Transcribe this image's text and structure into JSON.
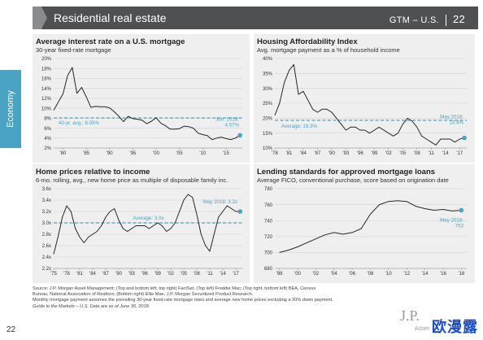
{
  "header": {
    "title": "Residential real estate",
    "region": "GTM – U.S.",
    "page": "22"
  },
  "side_tab": {
    "label": "Economy"
  },
  "panels": [
    {
      "title": "Average interest rate on a U.S. mortgage",
      "subtitle": "30-year fixed-rate mortgage"
    },
    {
      "title": "Housing Affordability Index",
      "subtitle": "Avg. mortgage payment as a % of household income"
    },
    {
      "title": "Home prices relative to income",
      "subtitle": "6-mo. rolling, avg., new home price as multiple of disposable family inc."
    },
    {
      "title": "Lending standards for approved mortgage loans",
      "subtitle": "Average FICO, conventional purchase, score based on origination date"
    }
  ],
  "colors": {
    "header_bg": "#4f5052",
    "accent": "#4aa3c2",
    "line": "#262626",
    "avg_line": "#4aa3c2",
    "panel_bg": "#efefef"
  },
  "chart_data": [
    {
      "type": "line",
      "title": "Average interest rate on a U.S. mortgage",
      "subtitle": "30-year fixed-rate mortgage",
      "x": [
        1978,
        1980,
        1981,
        1982,
        1983,
        1984,
        1985,
        1986,
        1987,
        1988,
        1989,
        1990,
        1991,
        1992,
        1993,
        1994,
        1995,
        1996,
        1997,
        1998,
        1999,
        2000,
        2001,
        2002,
        2003,
        2004,
        2005,
        2006,
        2007,
        2008,
        2009,
        2010,
        2011,
        2012,
        2013,
        2014,
        2015,
        2016,
        2017,
        2018
      ],
      "values": [
        9.6,
        12.9,
        16.6,
        18.2,
        13.0,
        14.2,
        12.3,
        10.2,
        10.4,
        10.3,
        10.3,
        10.1,
        9.3,
        8.4,
        7.3,
        8.4,
        7.9,
        7.8,
        7.6,
        6.9,
        7.4,
        8.1,
        7.0,
        6.5,
        5.8,
        5.8,
        5.9,
        6.4,
        6.3,
        6.0,
        5.0,
        4.7,
        4.5,
        3.7,
        4.0,
        4.2,
        3.9,
        3.7,
        4.0,
        4.57
      ],
      "xticks": [
        "'80",
        "'85",
        "'90",
        "'95",
        "'00",
        "'05",
        "'10",
        "'15"
      ],
      "xlim": [
        1978,
        2018.5
      ],
      "ylim": [
        2,
        20
      ],
      "yticks": [
        "2%",
        "4%",
        "6%",
        "8%",
        "10%",
        "12%",
        "14%",
        "16%",
        "18%",
        "20%"
      ],
      "average": {
        "value": 8.05,
        "label": "40-yr. avg.: 8.05%"
      },
      "latest": {
        "value": 4.57,
        "label_lines": [
          "Jun. 2018:",
          "4.57%"
        ]
      }
    },
    {
      "type": "line",
      "title": "Housing Affordability Index",
      "subtitle": "Avg. mortgage payment as a % of household income",
      "x": [
        1978,
        1979,
        1980,
        1981,
        1982,
        1983,
        1984,
        1985,
        1986,
        1987,
        1988,
        1989,
        1990,
        1991,
        1992,
        1993,
        1994,
        1995,
        1996,
        1997,
        1998,
        1999,
        2000,
        2001,
        2002,
        2003,
        2004,
        2005,
        2006,
        2007,
        2008,
        2009,
        2010,
        2011,
        2012,
        2013,
        2014,
        2015,
        2016,
        2017,
        2018
      ],
      "values": [
        21,
        25,
        32,
        36,
        38,
        28,
        29,
        26,
        23,
        22,
        23,
        23,
        22,
        20,
        18,
        16,
        17,
        17,
        16,
        16,
        15,
        16,
        17,
        16,
        15,
        14,
        15,
        18,
        20,
        19,
        17,
        14,
        13,
        12,
        11,
        13,
        13,
        13,
        12,
        13,
        13.4
      ],
      "xticks": [
        "'78",
        "'81",
        "'84",
        "'87",
        "'90",
        "'93",
        "'96",
        "'99",
        "'02",
        "'05",
        "'08",
        "'11",
        "'14",
        "'17"
      ],
      "xlim": [
        1978,
        2018.5
      ],
      "ylim": [
        10,
        40
      ],
      "yticks": [
        "10%",
        "15%",
        "20%",
        "25%",
        "30%",
        "35%",
        "40%"
      ],
      "average": {
        "value": 19.3,
        "label": "Average: 19.3%"
      },
      "latest": {
        "value": 13.4,
        "label_lines": [
          "May 2018:",
          "13.4%"
        ]
      }
    },
    {
      "type": "line",
      "title": "Home prices relative to income",
      "subtitle": "6-mo. rolling, avg., new home price as multiple of disposable family inc.",
      "x": [
        1975,
        1976,
        1977,
        1978,
        1979,
        1980,
        1981,
        1982,
        1983,
        1984,
        1985,
        1986,
        1987,
        1988,
        1989,
        1990,
        1991,
        1992,
        1993,
        1994,
        1995,
        1996,
        1997,
        1998,
        1999,
        2000,
        2001,
        2002,
        2003,
        2004,
        2005,
        2006,
        2007,
        2008,
        2009,
        2010,
        2011,
        2012,
        2013,
        2014,
        2015,
        2016,
        2017,
        2018
      ],
      "values": [
        2.45,
        2.75,
        3.1,
        3.3,
        3.2,
        2.9,
        2.75,
        2.65,
        2.75,
        2.8,
        2.85,
        2.95,
        3.1,
        3.2,
        3.25,
        3.05,
        2.9,
        2.85,
        2.9,
        2.95,
        2.95,
        2.95,
        2.9,
        2.95,
        3.0,
        2.95,
        2.85,
        2.9,
        3.0,
        3.2,
        3.4,
        3.5,
        3.45,
        3.15,
        2.8,
        2.6,
        2.5,
        2.8,
        3.1,
        3.2,
        3.3,
        3.25,
        3.2,
        3.2
      ],
      "xticks": [
        "'75",
        "'78",
        "'81",
        "'84",
        "'87",
        "'90",
        "'93",
        "'96",
        "'99",
        "'02",
        "'05",
        "'08",
        "'11",
        "'14",
        "'17"
      ],
      "xlim": [
        1975,
        2018.5
      ],
      "ylim": [
        2.2,
        3.6
      ],
      "yticks": [
        "2.2x",
        "2.4x",
        "2.6x",
        "2.8x",
        "3.0x",
        "3.2x",
        "3.4x",
        "3.6x"
      ],
      "average": {
        "value": 3.0,
        "label": "Average: 3.0x"
      },
      "latest": {
        "value": 3.2,
        "label_lines": [
          "May 2018: 3.2x"
        ]
      }
    },
    {
      "type": "line",
      "title": "Lending standards for approved mortgage loans",
      "subtitle": "Average FICO, conventional purchase, score based on origination date",
      "x": [
        1998,
        1999,
        2000,
        2001,
        2002,
        2003,
        2004,
        2005,
        2006,
        2007,
        2008,
        2009,
        2010,
        2011,
        2012,
        2013,
        2014,
        2015,
        2016,
        2017,
        2018
      ],
      "values": [
        700,
        703,
        707,
        712,
        717,
        722,
        725,
        723,
        725,
        730,
        748,
        760,
        764,
        765,
        764,
        758,
        755,
        753,
        754,
        752,
        753
      ],
      "xticks": [
        "'98",
        "'00",
        "'02",
        "'04",
        "'06",
        "'08",
        "'10",
        "'12",
        "'14",
        "'16",
        "'18"
      ],
      "xlim": [
        1997.5,
        2018.6
      ],
      "ylim": [
        680,
        780
      ],
      "yticks": [
        "680",
        "700",
        "720",
        "740",
        "760",
        "780"
      ],
      "latest": {
        "value": 753,
        "label_lines": [
          "May 2018:",
          "753"
        ]
      }
    }
  ],
  "footnote": {
    "lines": [
      "Source: J.P. Morgan Asset Management; (Top and bottom left, top right) FactSet, (Top left) Freddie Mac; (Top right, bottom left) BEA, Census",
      "Bureau, National Association of Realtors; (Bottom right) Ellie Mae, J.P. Morgan Securitized Product Research.",
      "Monthly mortgage payment assumes the prevailing 30-year fixed-rate mortgage rates and average new home prices excluding a 20% down payment.",
      "Guide to the Markets – U.S. Data are as of June 30, 2018."
    ]
  },
  "page_number": "22",
  "brand": {
    "logo": "J.P.",
    "sub": "Asset"
  },
  "watermark": "欧漫露"
}
